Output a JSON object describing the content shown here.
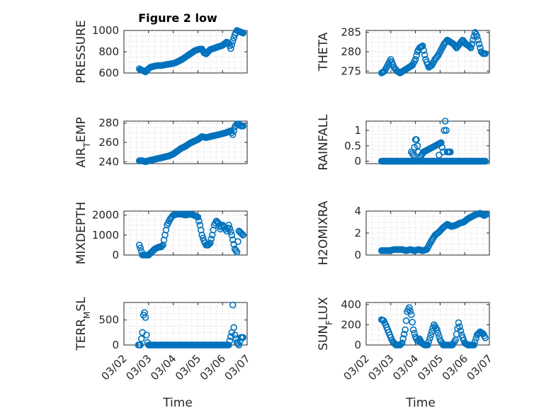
{
  "figure": {
    "title": "Figure 2 low",
    "marker_color": "#0072BD"
  },
  "xaxis_shared": {
    "ticks": [
      "03/02",
      "03/03",
      "03/04",
      "03/05",
      "03/06",
      "03/07"
    ],
    "tick_days": [
      2,
      3,
      4,
      5,
      6,
      7
    ],
    "range_days": [
      2,
      7
    ],
    "label": "Time"
  },
  "chart_data": [
    {
      "type": "scatter",
      "ylabel": "PRESSURE",
      "ylim": [
        600,
        1000
      ],
      "yticks": [
        600,
        800,
        1000
      ],
      "grid": true,
      "series": [
        {
          "x": [
            "03/02 15:00",
            "03/02 16:00",
            "03/02 18:00",
            "03/02 20:00",
            "03/02 21:00",
            "03/03 00:00",
            "03/03 02:00",
            "03/03 04:00",
            "03/03 06:00",
            "03/03 09:00",
            "03/03 12:00",
            "03/03 15:00",
            "03/03 18:00",
            "03/03 21:00",
            "03/04 00:00",
            "03/04 03:00",
            "03/04 06:00",
            "03/04 09:00",
            "03/04 12:00",
            "03/04 15:00",
            "03/04 18:00",
            "03/04 21:00",
            "03/05 00:00",
            "03/05 02:00",
            "03/05 04:00",
            "03/05 06:00",
            "03/05 08:00",
            "03/05 10:00",
            "03/05 12:00",
            "03/05 15:00",
            "03/05 18:00",
            "03/05 21:00",
            "03/06 00:00",
            "03/06 02:00",
            "03/06 04:00",
            "03/06 06:00",
            "03/06 08:00",
            "03/06 10:00",
            "03/06 12:00",
            "03/06 14:00",
            "03/06 16:00",
            "03/06 18:00",
            "03/06 20:00"
          ],
          "y": [
            640,
            630,
            625,
            615,
            610,
            640,
            655,
            660,
            665,
            670,
            670,
            675,
            680,
            685,
            690,
            700,
            715,
            730,
            750,
            770,
            790,
            810,
            820,
            825,
            825,
            790,
            780,
            800,
            820,
            830,
            840,
            850,
            860,
            875,
            890,
            880,
            830,
            900,
            960,
            1000,
            990,
            985,
            975
          ]
        }
      ]
    },
    {
      "type": "scatter",
      "ylabel": "THETA",
      "ylim": [
        274.5,
        285.5
      ],
      "yticks": [
        275,
        280,
        285
      ],
      "grid": true,
      "series": [
        {
          "x": [
            "03/02 15:00",
            "03/02 18:00",
            "03/02 21:00",
            "03/03 00:00",
            "03/03 03:00",
            "03/03 06:00",
            "03/03 09:00",
            "03/03 12:00",
            "03/03 15:00",
            "03/03 18:00",
            "03/03 21:00",
            "03/04 00:00",
            "03/04 02:00",
            "03/04 04:00",
            "03/04 07:00",
            "03/04 10:00",
            "03/04 13:00",
            "03/04 16:00",
            "03/04 19:00",
            "03/04 22:00",
            "03/05 01:00",
            "03/05 04:00",
            "03/05 07:00",
            "03/05 10:00",
            "03/05 13:00",
            "03/05 16:00",
            "03/05 19:00",
            "03/05 22:00",
            "03/06 01:00",
            "03/06 04:00",
            "03/06 06:00",
            "03/06 08:00",
            "03/06 10:00",
            "03/06 12:00",
            "03/06 14:00",
            "03/06 16:00",
            "03/06 18:00",
            "03/06 20:00"
          ],
          "y": [
            274.5,
            275,
            276.5,
            278,
            276,
            275,
            274.5,
            275,
            275.5,
            276,
            276.5,
            278,
            280,
            281,
            281.5,
            278,
            276,
            276.5,
            278,
            279,
            280.5,
            282,
            283,
            282.5,
            282,
            281,
            282,
            283,
            282,
            281.5,
            281,
            283,
            285,
            284,
            282,
            280,
            279.5,
            279.5
          ]
        }
      ]
    },
    {
      "type": "scatter",
      "ylabel": "AIR_TEMP",
      "ylim": [
        238,
        282
      ],
      "yticks": [
        240,
        260,
        280
      ],
      "grid": true,
      "series": [
        {
          "x": [
            "03/02 15:00",
            "03/02 18:00",
            "03/02 21:00",
            "03/03 00:00",
            "03/03 04:00",
            "03/03 08:00",
            "03/03 12:00",
            "03/03 16:00",
            "03/03 20:00",
            "03/04 00:00",
            "03/04 04:00",
            "03/04 08:00",
            "03/04 12:00",
            "03/04 16:00",
            "03/04 20:00",
            "03/05 00:00",
            "03/05 04:00",
            "03/05 08:00",
            "03/05 12:00",
            "03/05 16:00",
            "03/05 20:00",
            "03/06 00:00",
            "03/06 03:00",
            "03/06 06:00",
            "03/06 08:00",
            "03/06 10:00",
            "03/06 12:00",
            "03/06 14:00",
            "03/06 16:00",
            "03/06 18:00",
            "03/06 20:00"
          ],
          "y": [
            241,
            241,
            240,
            241,
            242,
            243,
            244,
            245,
            246,
            248,
            251,
            254,
            256,
            259,
            261,
            263,
            266,
            265,
            266,
            267,
            268,
            269,
            270,
            271,
            272,
            268,
            276,
            279,
            279,
            277,
            277
          ]
        }
      ]
    },
    {
      "type": "scatter",
      "ylabel": "RAINFALL",
      "ylim": [
        -0.08,
        1.3
      ],
      "yticks": [
        0,
        0.5,
        1
      ],
      "grid": true,
      "series": [
        {
          "x": [
            "03/02 15:00",
            "03/02 20:00",
            "03/03 01:00",
            "03/03 06:00",
            "03/03 11:00",
            "03/03 16:00",
            "03/03 21:00",
            "03/04 02:00",
            "03/04 06:00",
            "03/04 10:00",
            "03/04 14:00",
            "03/04 18:00",
            "03/04 22:00",
            "03/05 02:00",
            "03/05 06:00",
            "03/05 09:00",
            "03/05 12:00",
            "03/05 15:00",
            "03/05 18:00",
            "03/05 21:00",
            "03/06 00:00",
            "03/06 04:00",
            "03/06 08:00",
            "03/06 12:00",
            "03/06 16:00",
            "03/06 20:00",
            "03/03 20:00",
            "03/03 22:00",
            "03/04 00:00",
            "03/04 01:00",
            "03/04 03:00",
            "03/04 04:00",
            "03/04 06:00",
            "03/04 08:00",
            "03/05 01:00",
            "03/05 03:00",
            "03/05 04:00",
            "03/05 05:00",
            "03/05 06:00",
            "03/05 07:00",
            "03/05 10:00",
            "03/04 23:00"
          ],
          "y": [
            0,
            0,
            0,
            0,
            0,
            0,
            0,
            0,
            0,
            0,
            0,
            0,
            0,
            0,
            0,
            0,
            0,
            0,
            0,
            0,
            0,
            0,
            0,
            0,
            0,
            0,
            0.3,
            0.2,
            0.7,
            0.7,
            0.3,
            0.1,
            0.2,
            0.3,
            0.6,
            0.3,
            1.0,
            1.3,
            1.0,
            0.3,
            0.3,
            0.2
          ]
        }
      ]
    },
    {
      "type": "scatter",
      "ylabel": "MIXDEPTH",
      "ylim": [
        0,
        2200
      ],
      "yticks": [
        0,
        1000,
        2000
      ],
      "grid": true,
      "series": [
        {
          "x": [
            "03/02 15:00",
            "03/02 16:00",
            "03/02 18:00",
            "03/02 20:00",
            "03/02 22:00",
            "03/03 00:00",
            "03/03 02:00",
            "03/03 04:00",
            "03/03 06:00",
            "03/03 08:00",
            "03/03 10:00",
            "03/03 12:00",
            "03/03 14:00",
            "03/03 16:00",
            "03/03 18:00",
            "03/03 21:00",
            "03/04 00:00",
            "03/04 04:00",
            "03/04 08:00",
            "03/04 12:00",
            "03/04 16:00",
            "03/04 20:00",
            "03/05 00:00",
            "03/05 02:00",
            "03/05 04:00",
            "03/05 06:00",
            "03/05 08:00",
            "03/05 10:00",
            "03/05 12:00",
            "03/05 14:00",
            "03/05 16:00",
            "03/05 18:00",
            "03/05 20:00",
            "03/05 22:00",
            "03/06 00:00",
            "03/06 02:00",
            "03/06 04:00",
            "03/06 06:00",
            "03/06 09:00",
            "03/06 12:00",
            "03/06 14:00",
            "03/06 16:00",
            "03/06 18:00",
            "03/06 20:00"
          ],
          "y": [
            500,
            350,
            0,
            0,
            0,
            0,
            100,
            200,
            300,
            350,
            400,
            400,
            500,
            1000,
            1500,
            1800,
            2000,
            2050,
            2050,
            2000,
            2050,
            2000,
            1900,
            1500,
            1000,
            700,
            500,
            500,
            600,
            1000,
            1500,
            1700,
            1600,
            1300,
            1500,
            1400,
            1200,
            1500,
            1000,
            300,
            150,
            1200,
            1100,
            1000
          ]
        }
      ]
    },
    {
      "type": "scatter",
      "ylabel": "H2OMIXRA",
      "ylim": [
        0,
        4
      ],
      "yticks": [
        0,
        2,
        4
      ],
      "grid": true,
      "series": [
        {
          "x": [
            "03/02 15:00",
            "03/02 19:00",
            "03/02 23:00",
            "03/03 03:00",
            "03/03 07:00",
            "03/03 11:00",
            "03/03 15:00",
            "03/03 19:00",
            "03/03 23:00",
            "03/04 03:00",
            "03/04 07:00",
            "03/04 11:00",
            "03/04 15:00",
            "03/04 19:00",
            "03/04 23:00",
            "03/05 03:00",
            "03/05 07:00",
            "03/05 11:00",
            "03/05 15:00",
            "03/05 19:00",
            "03/05 23:00",
            "03/06 03:00",
            "03/06 07:00",
            "03/06 11:00",
            "03/06 15:00",
            "03/06 19:00",
            "03/06 21:00"
          ],
          "y": [
            0.4,
            0.4,
            0.4,
            0.5,
            0.5,
            0.5,
            0.4,
            0.5,
            0.4,
            0.5,
            0.4,
            0.5,
            1.2,
            1.8,
            2.1,
            2.5,
            2.8,
            2.6,
            2.7,
            2.9,
            3.0,
            3.3,
            3.5,
            3.7,
            3.8,
            3.6,
            3.7
          ]
        }
      ]
    },
    {
      "type": "scatter",
      "ylabel": "TERR_MSL",
      "ylim": [
        0,
        850
      ],
      "yticks": [
        0,
        500
      ],
      "grid": true,
      "series": [
        {
          "x": [
            "03/02 14:00",
            "03/02 16:00",
            "03/02 18:00",
            "03/02 19:00",
            "03/02 20:00",
            "03/02 21:00",
            "03/02 22:00",
            "03/02 23:00",
            "03/03 00:00",
            "03/03 06:00",
            "03/03 12:00",
            "03/03 18:00",
            "03/04 00:00",
            "03/04 06:00",
            "03/04 12:00",
            "03/04 18:00",
            "03/05 00:00",
            "03/05 06:00",
            "03/05 12:00",
            "03/05 18:00",
            "03/06 00:00",
            "03/06 06:00",
            "03/06 09:00",
            "03/06 10:00",
            "03/06 11:00",
            "03/06 12:00",
            "03/06 14:00",
            "03/06 16:00",
            "03/06 18:00",
            "03/06 20:00"
          ],
          "y": [
            0,
            0,
            250,
            600,
            650,
            550,
            200,
            50,
            0,
            0,
            0,
            0,
            0,
            0,
            0,
            0,
            0,
            0,
            0,
            0,
            0,
            0,
            250,
            800,
            350,
            200,
            50,
            0,
            150,
            150
          ]
        }
      ]
    },
    {
      "type": "scatter",
      "ylabel": "SUN_FLUX",
      "ylim": [
        0,
        420
      ],
      "yticks": [
        0,
        200,
        400
      ],
      "grid": true,
      "series": [
        {
          "x": [
            "03/02 15:00",
            "03/02 17:00",
            "03/02 19:00",
            "03/02 21:00",
            "03/02 23:00",
            "03/03 01:00",
            "03/03 03:00",
            "03/03 05:00",
            "03/03 07:00",
            "03/03 09:00",
            "03/03 11:00",
            "03/03 14:00",
            "03/03 16:00",
            "03/03 18:00",
            "03/03 20:00",
            "03/03 22:00",
            "03/04 00:00",
            "03/04 02:00",
            "03/04 04:00",
            "03/04 06:00",
            "03/04 09:00",
            "03/04 12:00",
            "03/04 15:00",
            "03/04 18:00",
            "03/04 21:00",
            "03/05 00:00",
            "03/05 03:00",
            "03/05 06:00",
            "03/05 09:00",
            "03/05 12:00",
            "03/05 15:00",
            "03/05 18:00",
            "03/05 21:00",
            "03/06 00:00",
            "03/06 03:00",
            "03/06 06:00",
            "03/06 09:00",
            "03/06 12:00",
            "03/06 15:00",
            "03/06 18:00",
            "03/06 20:00"
          ],
          "y": [
            250,
            240,
            200,
            150,
            100,
            50,
            20,
            0,
            0,
            0,
            20,
            150,
            330,
            370,
            300,
            150,
            80,
            40,
            60,
            20,
            0,
            0,
            100,
            200,
            150,
            50,
            0,
            0,
            0,
            0,
            50,
            220,
            100,
            20,
            0,
            0,
            0,
            100,
            130,
            110,
            70
          ]
        }
      ]
    }
  ]
}
